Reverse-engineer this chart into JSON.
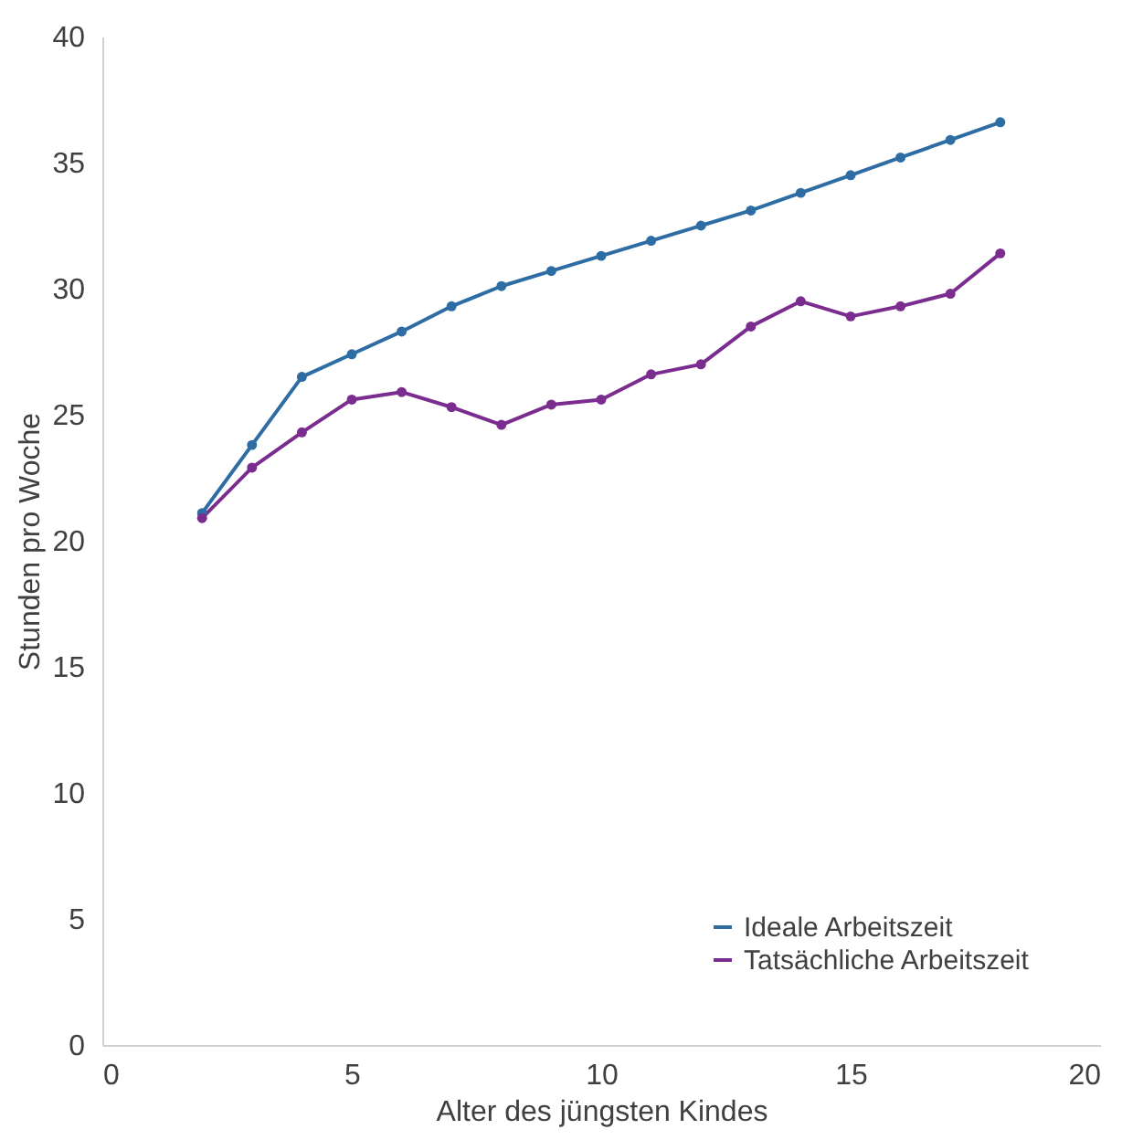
{
  "chart_data": {
    "type": "line",
    "xlabel": "Alter des jüngsten Kindes",
    "ylabel": "Stunden pro Woche",
    "x": [
      2,
      3,
      4,
      5,
      6,
      7,
      8,
      9,
      10,
      11,
      12,
      13,
      14,
      15,
      16,
      17,
      18
    ],
    "series": [
      {
        "name": "Ideale Arbeitszeit",
        "color": "#2e6da4",
        "values": [
          21.1,
          23.8,
          26.5,
          27.4,
          28.3,
          29.3,
          30.1,
          30.7,
          31.3,
          31.9,
          32.5,
          33.1,
          33.8,
          34.5,
          35.2,
          35.9,
          36.6
        ]
      },
      {
        "name": "Tatsächliche Arbeitszeit",
        "color": "#7b2c8f",
        "values": [
          20.9,
          22.9,
          24.3,
          25.6,
          25.9,
          25.3,
          24.6,
          25.4,
          25.6,
          26.6,
          27.0,
          28.5,
          29.5,
          28.9,
          29.3,
          29.8,
          31.4
        ]
      }
    ],
    "xlim": [
      0,
      20
    ],
    "xticks": [
      0,
      5,
      10,
      15,
      20
    ],
    "ylim": [
      0,
      40
    ],
    "yticks": [
      0,
      5,
      10,
      15,
      20,
      25,
      30,
      35,
      40
    ],
    "grid": false,
    "legend": "bottom right",
    "marker": "circle",
    "line_style": "solid"
  }
}
